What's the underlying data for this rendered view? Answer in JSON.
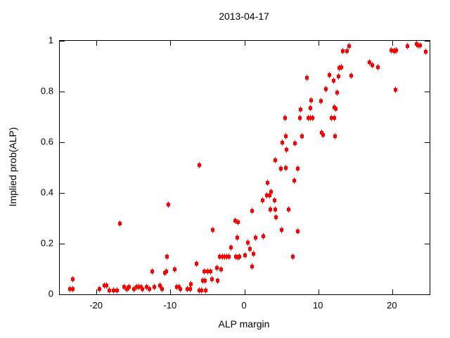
{
  "figure": {
    "title": "2013-04-17",
    "xlabel": "ALP margin",
    "ylabel": "Implied prob(ALP)"
  },
  "chart_data": {
    "type": "scatter",
    "title": "2013-04-17",
    "xlabel": "ALP margin",
    "ylabel": "Implied prob(ALP)",
    "xlim": [
      -25,
      25
    ],
    "ylim": [
      0,
      1
    ],
    "xticks": [
      -20,
      -10,
      0,
      10,
      20
    ],
    "yticks": [
      0,
      0.2,
      0.4,
      0.6,
      0.8,
      1
    ],
    "grid": false,
    "legend_position": "none",
    "marker": "square",
    "marker_color": "#ff0000",
    "axis_color": "#000000",
    "background_color": "#ffffff",
    "points": [
      [
        -23.6,
        0.02
      ],
      [
        -23.2,
        0.02
      ],
      [
        -23.2,
        0.06
      ],
      [
        -19.6,
        0.02
      ],
      [
        -19.0,
        0.035
      ],
      [
        -18.7,
        0.035
      ],
      [
        -18.3,
        0.015
      ],
      [
        -17.7,
        0.015
      ],
      [
        -17.3,
        0.015
      ],
      [
        -16.9,
        0.28
      ],
      [
        -16.3,
        0.03
      ],
      [
        -15.9,
        0.02
      ],
      [
        -15.6,
        0.03
      ],
      [
        -15.0,
        0.02
      ],
      [
        -14.6,
        0.03
      ],
      [
        -14.3,
        0.03
      ],
      [
        -14.0,
        0.03
      ],
      [
        -13.8,
        0.02
      ],
      [
        -13.3,
        0.03
      ],
      [
        -12.9,
        0.02
      ],
      [
        -12.5,
        0.09
      ],
      [
        -12.2,
        0.03
      ],
      [
        -11.5,
        0.035
      ],
      [
        -11.2,
        0.02
      ],
      [
        -10.8,
        0.085
      ],
      [
        -10.6,
        0.09
      ],
      [
        -10.5,
        0.15
      ],
      [
        -10.3,
        0.355
      ],
      [
        -9.5,
        0.1
      ],
      [
        -9.2,
        0.03
      ],
      [
        -8.9,
        0.03
      ],
      [
        -8.7,
        0.02
      ],
      [
        -7.7,
        0.02
      ],
      [
        -7.4,
        0.02
      ],
      [
        -7.3,
        0.04
      ],
      [
        -6.5,
        0.12
      ],
      [
        -6.1,
        0.015
      ],
      [
        -6.1,
        0.51
      ],
      [
        -5.8,
        0.015
      ],
      [
        -5.3,
        0.015
      ],
      [
        -5.7,
        0.055
      ],
      [
        -5.5,
        0.09
      ],
      [
        -5.4,
        0.055
      ],
      [
        -5.0,
        0.09
      ],
      [
        -4.6,
        0.09
      ],
      [
        -4.4,
        0.06
      ],
      [
        -4.3,
        0.255
      ],
      [
        -3.8,
        0.105
      ],
      [
        -3.7,
        0.055
      ],
      [
        -3.4,
        0.15
      ],
      [
        -3.2,
        0.1
      ],
      [
        -3.0,
        0.15
      ],
      [
        -2.7,
        0.15
      ],
      [
        -2.4,
        0.15
      ],
      [
        -2.1,
        0.15
      ],
      [
        -1.9,
        0.185
      ],
      [
        -1.3,
        0.29
      ],
      [
        -1.2,
        0.15
      ],
      [
        -1.0,
        0.225
      ],
      [
        -0.9,
        0.285
      ],
      [
        -0.9,
        0.145
      ],
      [
        -0.7,
        0.15
      ],
      [
        0.0,
        0.155
      ],
      [
        0.4,
        0.205
      ],
      [
        0.7,
        0.18
      ],
      [
        1.0,
        0.11
      ],
      [
        1.0,
        0.33
      ],
      [
        1.2,
        0.16
      ],
      [
        1.5,
        0.225
      ],
      [
        2.4,
        0.37
      ],
      [
        2.5,
        0.23
      ],
      [
        3.0,
        0.39
      ],
      [
        3.1,
        0.44
      ],
      [
        3.4,
        0.39
      ],
      [
        3.5,
        0.335
      ],
      [
        3.6,
        0.405
      ],
      [
        4.0,
        0.37
      ],
      [
        4.1,
        0.335
      ],
      [
        4.1,
        0.53
      ],
      [
        4.2,
        0.305
      ],
      [
        4.9,
        0.495
      ],
      [
        5.0,
        0.255
      ],
      [
        5.1,
        0.6
      ],
      [
        5.5,
        0.695
      ],
      [
        5.6,
        0.5
      ],
      [
        5.6,
        0.625
      ],
      [
        5.7,
        0.57
      ],
      [
        5.9,
        0.335
      ],
      [
        6.5,
        0.15
      ],
      [
        6.7,
        0.45
      ],
      [
        6.8,
        0.595
      ],
      [
        7.2,
        0.25
      ],
      [
        7.2,
        0.495
      ],
      [
        7.5,
        0.695
      ],
      [
        7.6,
        0.73
      ],
      [
        7.7,
        0.625
      ],
      [
        8.4,
        0.855
      ],
      [
        8.6,
        0.695
      ],
      [
        8.9,
        0.695
      ],
      [
        8.9,
        0.735
      ],
      [
        9.0,
        0.765
      ],
      [
        9.2,
        0.695
      ],
      [
        10.3,
        0.763
      ],
      [
        10.4,
        0.638
      ],
      [
        10.6,
        0.628
      ],
      [
        11.0,
        0.81
      ],
      [
        11.5,
        0.865
      ],
      [
        11.7,
        0.695
      ],
      [
        12.0,
        0.843
      ],
      [
        12.1,
        0.695
      ],
      [
        12.1,
        0.737
      ],
      [
        12.2,
        0.623
      ],
      [
        12.3,
        0.732
      ],
      [
        12.5,
        0.795
      ],
      [
        12.7,
        0.859
      ],
      [
        12.8,
        0.893
      ],
      [
        13.1,
        0.896
      ],
      [
        13.3,
        0.961
      ],
      [
        13.8,
        0.961
      ],
      [
        14.1,
        0.978
      ],
      [
        14.4,
        0.862
      ],
      [
        16.9,
        0.915
      ],
      [
        17.3,
        0.903
      ],
      [
        18.0,
        0.896
      ],
      [
        19.8,
        0.962
      ],
      [
        20.2,
        0.96
      ],
      [
        20.4,
        0.806
      ],
      [
        20.5,
        0.962
      ],
      [
        22.0,
        0.98
      ],
      [
        23.2,
        0.988
      ],
      [
        23.4,
        0.982
      ],
      [
        23.7,
        0.982
      ],
      [
        24.5,
        0.956
      ]
    ]
  }
}
